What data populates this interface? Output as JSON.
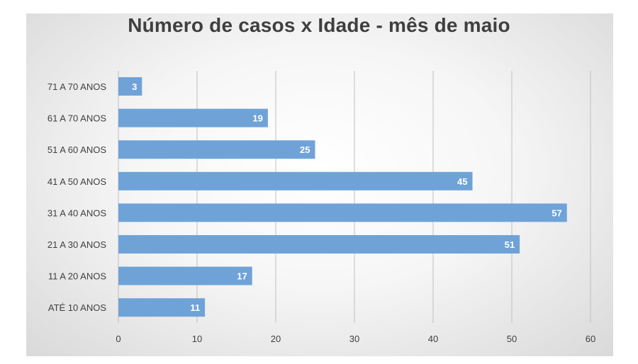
{
  "chart_data": {
    "type": "bar",
    "orientation": "horizontal",
    "title": "Número de casos x Idade - mês de maio",
    "xlabel": "",
    "ylabel": "",
    "categories": [
      "71 A 70 ANOS",
      "61 A 70 ANOS",
      "51 A 60 ANOS",
      "41 A 50 ANOS",
      "31 A 40 ANOS",
      "21 A 30 ANOS",
      "11 A 20 ANOS",
      "ATÉ 10 ANOS"
    ],
    "values": [
      3,
      19,
      25,
      45,
      57,
      51,
      17,
      11
    ],
    "xlim": [
      0,
      60
    ],
    "xticks": [
      0,
      10,
      20,
      30,
      40,
      50,
      60
    ],
    "grid": "vertical",
    "legend": "none",
    "colors": {
      "bar": "#6fa3d8",
      "grid": "#bfbfbf",
      "text": "#404040",
      "data_label": "#ffffff"
    }
  }
}
